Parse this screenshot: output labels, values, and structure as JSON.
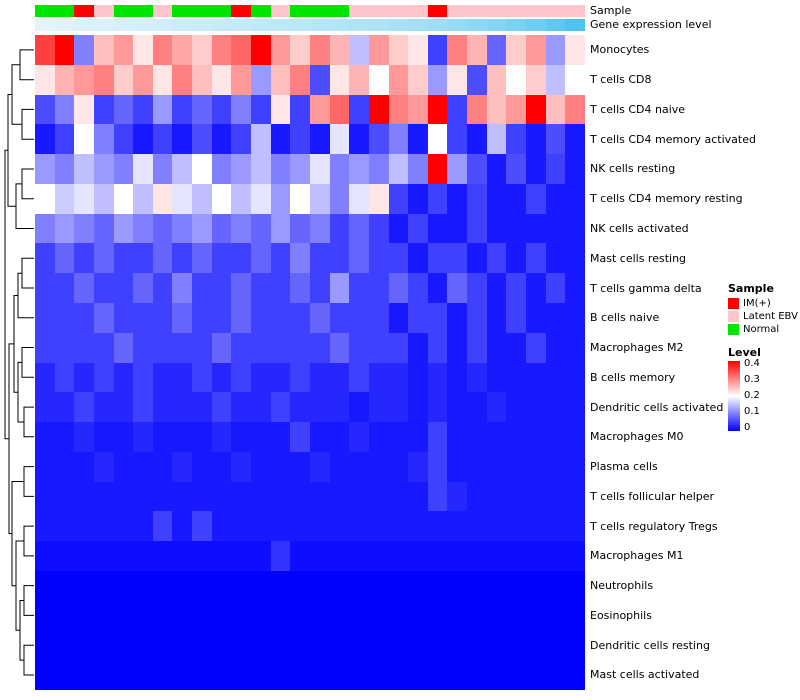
{
  "chart_data": {
    "type": "heatmap",
    "rows": [
      "Monocytes",
      "T cells CD8",
      "T cells CD4 naive",
      "T cells CD4 memory activated",
      "NK cells resting",
      "T cells CD4 memory resting",
      "NK cells activated",
      "Mast cells resting",
      "T cells gamma delta",
      "B cells naive",
      "Macrophages M2",
      "B cells memory",
      "Dendritic cells activated",
      "Macrophages M0",
      "Plasma cells",
      "T cells follicular helper",
      "T cells regulatory Tregs",
      "Macrophages M1",
      "Neutrophils",
      "Eosinophils",
      "Dendritic cells resting",
      "Mast cells activated"
    ],
    "n_columns": 28,
    "value_range": [
      0,
      0.4
    ],
    "colormap": {
      "low": "#0000ff",
      "mid": "#ffffff",
      "high": "#ff0000"
    },
    "values": [
      [
        0.35,
        0.4,
        0.1,
        0.25,
        0.28,
        0.22,
        0.3,
        0.27,
        0.24,
        0.3,
        0.32,
        0.4,
        0.28,
        0.24,
        0.3,
        0.26,
        0.15,
        0.28,
        0.24,
        0.22,
        0.05,
        0.3,
        0.26,
        0.08,
        0.24,
        0.28,
        0.12,
        0.22
      ],
      [
        0.22,
        0.26,
        0.28,
        0.3,
        0.24,
        0.28,
        0.22,
        0.3,
        0.25,
        0.22,
        0.28,
        0.12,
        0.25,
        0.3,
        0.06,
        0.22,
        0.26,
        0.2,
        0.28,
        0.24,
        0.12,
        0.22,
        0.06,
        0.25,
        0.2,
        0.24,
        0.15,
        0.2
      ],
      [
        0.06,
        0.1,
        0.22,
        0.05,
        0.08,
        0.05,
        0.12,
        0.05,
        0.08,
        0.05,
        0.1,
        0.05,
        0.22,
        0.05,
        0.28,
        0.32,
        0.05,
        0.4,
        0.3,
        0.28,
        0.4,
        0.05,
        0.3,
        0.25,
        0.28,
        0.4,
        0.25,
        0.3
      ],
      [
        0.02,
        0.05,
        0.2,
        0.1,
        0.05,
        0.02,
        0.05,
        0.02,
        0.06,
        0.02,
        0.05,
        0.15,
        0.02,
        0.05,
        0.02,
        0.18,
        0.02,
        0.06,
        0.1,
        0.02,
        0.2,
        0.05,
        0.02,
        0.15,
        0.05,
        0.02,
        0.06,
        0.02
      ],
      [
        0.12,
        0.1,
        0.15,
        0.12,
        0.1,
        0.18,
        0.1,
        0.15,
        0.2,
        0.1,
        0.12,
        0.15,
        0.1,
        0.12,
        0.18,
        0.1,
        0.12,
        0.1,
        0.15,
        0.1,
        0.4,
        0.12,
        0.06,
        0.02,
        0.06,
        0.02,
        0.05,
        0.02
      ],
      [
        0.2,
        0.16,
        0.18,
        0.15,
        0.2,
        0.15,
        0.22,
        0.18,
        0.15,
        0.2,
        0.15,
        0.18,
        0.12,
        0.2,
        0.15,
        0.1,
        0.18,
        0.22,
        0.05,
        0.02,
        0.05,
        0.02,
        0.05,
        0.02,
        0.02,
        0.05,
        0.02,
        0.02
      ],
      [
        0.1,
        0.12,
        0.1,
        0.08,
        0.12,
        0.1,
        0.08,
        0.1,
        0.12,
        0.08,
        0.1,
        0.08,
        0.12,
        0.08,
        0.1,
        0.05,
        0.08,
        0.05,
        0.02,
        0.05,
        0.02,
        0.02,
        0.05,
        0.02,
        0.02,
        0.02,
        0.02,
        0.02
      ],
      [
        0.05,
        0.08,
        0.05,
        0.08,
        0.05,
        0.05,
        0.08,
        0.05,
        0.08,
        0.05,
        0.05,
        0.08,
        0.05,
        0.1,
        0.05,
        0.05,
        0.08,
        0.05,
        0.05,
        0.02,
        0.05,
        0.05,
        0.02,
        0.05,
        0.02,
        0.05,
        0.02,
        0.02
      ],
      [
        0.05,
        0.05,
        0.08,
        0.05,
        0.05,
        0.08,
        0.05,
        0.1,
        0.05,
        0.05,
        0.08,
        0.05,
        0.05,
        0.08,
        0.05,
        0.12,
        0.05,
        0.05,
        0.08,
        0.05,
        0.02,
        0.08,
        0.05,
        0.02,
        0.05,
        0.02,
        0.05,
        0.02
      ],
      [
        0.05,
        0.05,
        0.05,
        0.08,
        0.05,
        0.05,
        0.05,
        0.08,
        0.05,
        0.05,
        0.08,
        0.05,
        0.05,
        0.05,
        0.08,
        0.05,
        0.05,
        0.05,
        0.02,
        0.05,
        0.05,
        0.02,
        0.05,
        0.02,
        0.05,
        0.02,
        0.02,
        0.02
      ],
      [
        0.05,
        0.05,
        0.05,
        0.05,
        0.08,
        0.05,
        0.05,
        0.05,
        0.05,
        0.08,
        0.05,
        0.05,
        0.05,
        0.05,
        0.05,
        0.08,
        0.05,
        0.05,
        0.05,
        0.02,
        0.05,
        0.02,
        0.05,
        0.02,
        0.02,
        0.05,
        0.02,
        0.02
      ],
      [
        0.03,
        0.05,
        0.03,
        0.05,
        0.03,
        0.05,
        0.03,
        0.03,
        0.05,
        0.03,
        0.05,
        0.03,
        0.03,
        0.05,
        0.03,
        0.03,
        0.05,
        0.03,
        0.03,
        0.02,
        0.03,
        0.02,
        0.03,
        0.02,
        0.02,
        0.02,
        0.02,
        0.02
      ],
      [
        0.03,
        0.03,
        0.05,
        0.03,
        0.03,
        0.05,
        0.03,
        0.03,
        0.03,
        0.05,
        0.03,
        0.03,
        0.05,
        0.03,
        0.03,
        0.03,
        0.02,
        0.03,
        0.03,
        0.02,
        0.03,
        0.02,
        0.02,
        0.03,
        0.02,
        0.02,
        0.02,
        0.02
      ],
      [
        0.02,
        0.02,
        0.03,
        0.02,
        0.02,
        0.03,
        0.02,
        0.02,
        0.02,
        0.03,
        0.02,
        0.02,
        0.02,
        0.05,
        0.02,
        0.02,
        0.03,
        0.02,
        0.02,
        0.02,
        0.05,
        0.02,
        0.02,
        0.02,
        0.02,
        0.02,
        0.02,
        0.02
      ],
      [
        0.02,
        0.02,
        0.02,
        0.03,
        0.02,
        0.02,
        0.02,
        0.03,
        0.02,
        0.02,
        0.03,
        0.02,
        0.02,
        0.02,
        0.03,
        0.02,
        0.02,
        0.02,
        0.02,
        0.03,
        0.05,
        0.02,
        0.02,
        0.02,
        0.02,
        0.02,
        0.02,
        0.02
      ],
      [
        0.02,
        0.02,
        0.02,
        0.02,
        0.02,
        0.02,
        0.02,
        0.02,
        0.02,
        0.02,
        0.02,
        0.02,
        0.02,
        0.02,
        0.02,
        0.02,
        0.02,
        0.02,
        0.02,
        0.02,
        0.05,
        0.03,
        0.02,
        0.02,
        0.02,
        0.02,
        0.02,
        0.02
      ],
      [
        0.02,
        0.02,
        0.02,
        0.02,
        0.02,
        0.02,
        0.05,
        0.02,
        0.05,
        0.02,
        0.02,
        0.02,
        0.02,
        0.02,
        0.02,
        0.02,
        0.02,
        0.02,
        0.02,
        0.02,
        0.02,
        0.02,
        0.02,
        0.02,
        0.02,
        0.02,
        0.02,
        0.02
      ],
      [
        0.01,
        0.01,
        0.01,
        0.01,
        0.01,
        0.01,
        0.01,
        0.01,
        0.01,
        0.01,
        0.01,
        0.01,
        0.04,
        0.01,
        0.01,
        0.01,
        0.01,
        0.01,
        0.01,
        0.01,
        0.01,
        0.01,
        0.01,
        0.01,
        0.01,
        0.01,
        0.01,
        0.01
      ],
      [
        0,
        0,
        0,
        0,
        0,
        0,
        0,
        0,
        0,
        0,
        0,
        0,
        0,
        0,
        0,
        0,
        0,
        0,
        0,
        0,
        0,
        0,
        0,
        0,
        0,
        0,
        0,
        0
      ],
      [
        0,
        0,
        0,
        0,
        0,
        0,
        0,
        0,
        0,
        0,
        0,
        0,
        0,
        0,
        0,
        0,
        0,
        0,
        0,
        0,
        0,
        0,
        0,
        0,
        0,
        0,
        0,
        0
      ],
      [
        0,
        0,
        0,
        0,
        0,
        0,
        0,
        0,
        0,
        0,
        0,
        0,
        0,
        0,
        0,
        0,
        0,
        0,
        0,
        0,
        0,
        0,
        0,
        0,
        0,
        0,
        0,
        0
      ],
      [
        0,
        0,
        0,
        0,
        0,
        0,
        0,
        0,
        0,
        0,
        0,
        0,
        0,
        0,
        0,
        0,
        0,
        0,
        0,
        0,
        0,
        0,
        0,
        0,
        0,
        0,
        0,
        0
      ]
    ],
    "annotations": {
      "sample": {
        "label": "Sample",
        "values": [
          "Normal",
          "Normal",
          "IM(+)",
          "Latent EBV",
          "Normal",
          "Normal",
          "Latent EBV",
          "Normal",
          "Normal",
          "Normal",
          "IM(+)",
          "Normal",
          "Latent EBV",
          "Normal",
          "Normal",
          "Normal",
          "Latent EBV",
          "Latent EBV",
          "Latent EBV",
          "Latent EBV",
          "IM(+)",
          "Latent EBV",
          "Latent EBV",
          "Latent EBV",
          "Latent EBV",
          "Latent EBV",
          "Latent EBV",
          "Latent EBV"
        ],
        "colors": {
          "IM(+)": "#ff0000",
          "Latent EBV": "#ffc5cb",
          "Normal": "#00e500"
        }
      },
      "gene_expression": {
        "label": "Gene expression level",
        "values": [
          0.05,
          0.08,
          0.1,
          0.12,
          0.14,
          0.16,
          0.18,
          0.2,
          0.22,
          0.24,
          0.26,
          0.28,
          0.3,
          0.32,
          0.34,
          0.36,
          0.38,
          0.4,
          0.43,
          0.46,
          0.5,
          0.55,
          0.6,
          0.65,
          0.72,
          0.8,
          0.9,
          1.0
        ],
        "color_low": "#edf6fc",
        "color_high": "#4fc3f0"
      }
    },
    "legend": {
      "sample_title": "Sample",
      "sample_entries": [
        {
          "label": "IM(+)",
          "color": "#ff0000"
        },
        {
          "label": "Latent EBV",
          "color": "#ffc5cb"
        },
        {
          "label": "Normal",
          "color": "#00e500"
        }
      ],
      "level_title": "Level",
      "level_ticks": [
        "0.4",
        "0.3",
        "0.2",
        "0.1",
        "0"
      ]
    }
  }
}
